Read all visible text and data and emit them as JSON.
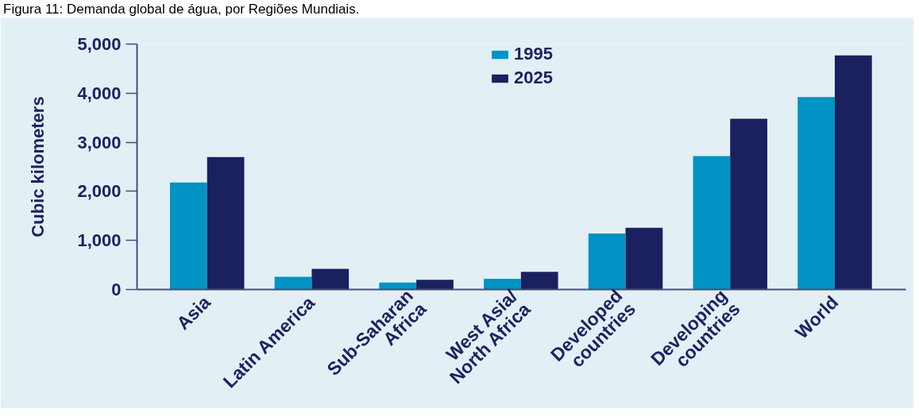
{
  "chart_data": {
    "type": "bar",
    "title": "Figura 11: Demanda global de água, por Regiões Mundiais.",
    "ylabel": "Cubic kilometers",
    "categories": [
      "Asia",
      "Latin America",
      "Sub-Saharan\nAfrica",
      "West Asia/\nNorth Africa",
      "Developed\ncountries",
      "Developing\ncountries",
      "World"
    ],
    "series": [
      {
        "name": "1995",
        "color": "#0093c4",
        "values": [
          2180,
          260,
          140,
          220,
          1140,
          2720,
          3920
        ]
      },
      {
        "name": "2025",
        "color": "#1b205e",
        "values": [
          2700,
          420,
          200,
          360,
          1260,
          3480,
          4770
        ]
      }
    ],
    "ylim": [
      0,
      5000
    ],
    "yticks": [
      0,
      {
        "value": 1000,
        "label": "1,000"
      },
      {
        "value": 2000,
        "label": "2,000"
      },
      {
        "value": 3000,
        "label": "3,000"
      },
      {
        "value": 4000,
        "label": "4,000"
      },
      {
        "value": 5000,
        "label": "5,000"
      }
    ],
    "legend": "top"
  }
}
